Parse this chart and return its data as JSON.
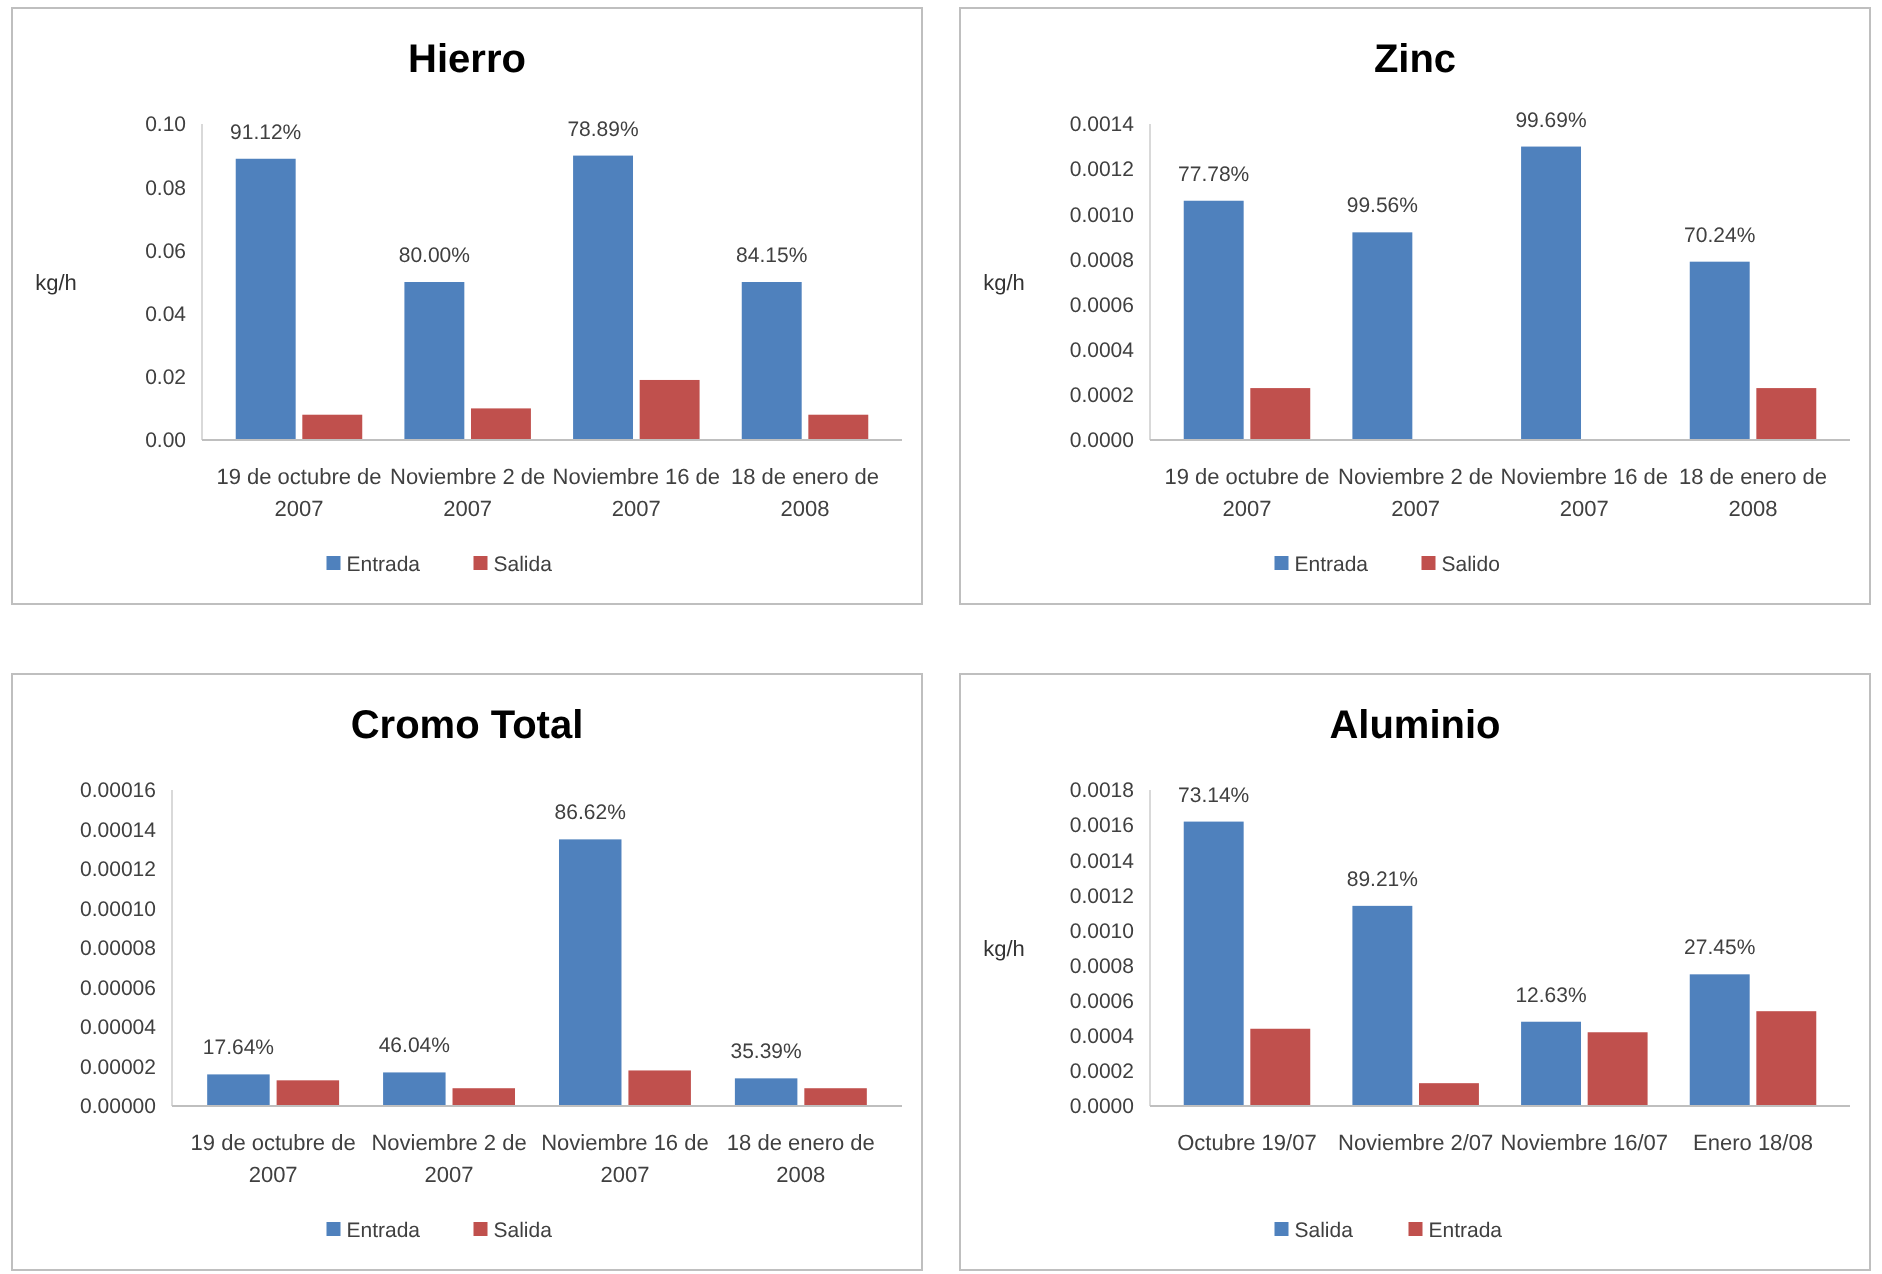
{
  "chart_data": [
    {
      "type": "bar",
      "title": "Hierro",
      "ylabel": "kg/h",
      "categories": [
        "19 de octubre de 2007",
        "Noviembre 2 de 2007",
        "Noviembre 16 de 2007",
        "18 de enero de 2008"
      ],
      "series": [
        {
          "name": "Entrada",
          "color": "#4f81bd",
          "values": [
            0.089,
            0.05,
            0.09,
            0.05
          ]
        },
        {
          "name": "Salida",
          "color": "#c0504d",
          "values": [
            0.008,
            0.01,
            0.019,
            0.008
          ]
        }
      ],
      "ylim": [
        0,
        0.1
      ],
      "yticks": [
        {
          "value": 0,
          "label": "0.00"
        },
        {
          "value": 0.02,
          "label": "0.02"
        },
        {
          "value": 0.04,
          "label": "0.04"
        },
        {
          "value": 0.06,
          "label": "0.06"
        },
        {
          "value": 0.08,
          "label": "0.08"
        },
        {
          "value": 0.1,
          "label": "0.10"
        }
      ],
      "annotations": [
        {
          "text": "91.12%",
          "x": "19 de octubre de 2007",
          "y": 0.089
        },
        {
          "text": "80.00%",
          "x": "Noviembre 2 de 2007",
          "y": 0.05
        },
        {
          "text": "78.89%",
          "x": "Noviembre 16 de 2007",
          "y": 0.09
        },
        {
          "text": "84.15%",
          "x": "18 de enero de 2008",
          "y": 0.05
        }
      ],
      "legend": "bottom",
      "grid": false
    },
    {
      "type": "bar",
      "title": "Zinc",
      "ylabel": "kg/h",
      "categories": [
        "19 de octubre de 2007",
        "Noviembre 2 de 2007",
        "Noviembre 16 de 2007",
        "18 de enero de 2008"
      ],
      "series": [
        {
          "name": "Entrada",
          "color": "#4f81bd",
          "values": [
            0.00106,
            0.00092,
            0.0013,
            0.00079
          ]
        },
        {
          "name": "Salido",
          "color": "#c0504d",
          "values": [
            0.00023,
            0,
            0,
            0.00023
          ]
        }
      ],
      "ylim": [
        0,
        0.0014
      ],
      "yticks": [
        {
          "value": 0,
          "label": "0.0000"
        },
        {
          "value": 0.0002,
          "label": "0.0002"
        },
        {
          "value": 0.0004,
          "label": "0.0004"
        },
        {
          "value": 0.0006,
          "label": "0.0006"
        },
        {
          "value": 0.0008,
          "label": "0.0008"
        },
        {
          "value": 0.001,
          "label": "0.0010"
        },
        {
          "value": 0.0012,
          "label": "0.0012"
        },
        {
          "value": 0.0014,
          "label": "0.0014"
        }
      ],
      "annotations": [
        {
          "text": "77.78%",
          "x": "19 de octubre de 2007",
          "y": 0.00106
        },
        {
          "text": "99.56%",
          "x": "Noviembre 2 de 2007",
          "y": 0.00092
        },
        {
          "text": "99.69%",
          "x": "Noviembre 16 de 2007",
          "y": 0.0013
        },
        {
          "text": "70.24%",
          "x": "18 de enero de 2008",
          "y": 0.00079
        }
      ],
      "legend": "bottom",
      "grid": false
    },
    {
      "type": "bar",
      "title": "Cromo Total",
      "categories": [
        "19 de octubre de 2007",
        "Noviembre 2 de 2007",
        "Noviembre 16 de 2007",
        "18 de enero de 2008"
      ],
      "series": [
        {
          "name": "Entrada",
          "color": "#4f81bd",
          "values": [
            1.6e-05,
            1.7e-05,
            0.000135,
            1.4e-05
          ]
        },
        {
          "name": "Salida",
          "color": "#c0504d",
          "values": [
            1.3e-05,
            9e-06,
            1.8e-05,
            9e-06
          ]
        }
      ],
      "ylim": [
        0,
        0.00016
      ],
      "yticks": [
        {
          "value": 0,
          "label": "0.00000"
        },
        {
          "value": 2e-05,
          "label": "0.00002"
        },
        {
          "value": 4e-05,
          "label": "0.00004"
        },
        {
          "value": 6e-05,
          "label": "0.00006"
        },
        {
          "value": 8e-05,
          "label": "0.00008"
        },
        {
          "value": 0.0001,
          "label": "0.00010"
        },
        {
          "value": 0.00012,
          "label": "0.00012"
        },
        {
          "value": 0.00014,
          "label": "0.00014"
        },
        {
          "value": 0.00016,
          "label": "0.00016"
        }
      ],
      "annotations": [
        {
          "text": "17.64%",
          "x": "19 de octubre de 2007",
          "y": 1.6e-05
        },
        {
          "text": "46.04%",
          "x": "Noviembre 2 de 2007",
          "y": 1.7e-05
        },
        {
          "text": "86.62%",
          "x": "Noviembre 16 de 2007",
          "y": 0.000135
        },
        {
          "text": "35.39%",
          "x": "18 de enero de 2008",
          "y": 1.4e-05
        }
      ],
      "legend": "bottom",
      "grid": false
    },
    {
      "type": "bar",
      "title": "Aluminio",
      "ylabel": "kg/h",
      "categories": [
        "Octubre 19/07",
        "Noviembre 2/07",
        "Noviembre 16/07",
        "Enero 18/08"
      ],
      "series": [
        {
          "name": "Salida",
          "color": "#4f81bd",
          "values": [
            0.00162,
            0.00114,
            0.00048,
            0.00075
          ]
        },
        {
          "name": "Entrada",
          "color": "#c0504d",
          "values": [
            0.00044,
            0.00013,
            0.00042,
            0.00054
          ]
        }
      ],
      "ylim": [
        0,
        0.0018
      ],
      "yticks": [
        {
          "value": 0,
          "label": "0.0000"
        },
        {
          "value": 0.0002,
          "label": "0.0002"
        },
        {
          "value": 0.0004,
          "label": "0.0004"
        },
        {
          "value": 0.0006,
          "label": "0.0006"
        },
        {
          "value": 0.0008,
          "label": "0.0008"
        },
        {
          "value": 0.001,
          "label": "0.0010"
        },
        {
          "value": 0.0012,
          "label": "0.0012"
        },
        {
          "value": 0.0014,
          "label": "0.0014"
        },
        {
          "value": 0.0016,
          "label": "0.0016"
        },
        {
          "value": 0.0018,
          "label": "0.0018"
        }
      ],
      "annotations": [
        {
          "text": "73.14%",
          "x": "Octubre 19/07",
          "y": 0.00162
        },
        {
          "text": "89.21%",
          "x": "Noviembre 2/07",
          "y": 0.00114
        },
        {
          "text": "12.63%",
          "x": "Noviembre 16/07",
          "y": 0.00048
        },
        {
          "text": "27.45%",
          "x": "Enero 18/08",
          "y": 0.00075
        }
      ],
      "legend": "bottom",
      "grid": false
    }
  ]
}
